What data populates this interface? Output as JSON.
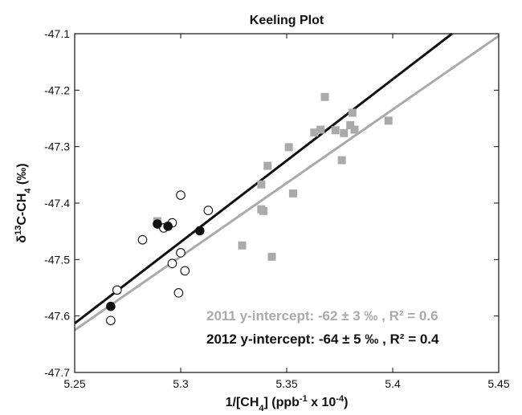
{
  "chart_data": {
    "type": "scatter",
    "title": "Keeling Plot",
    "xlabel": "1/[CH4] (ppb-1 x 10-4)",
    "ylabel": "δ13C-CH4 (‰)",
    "xlim": [
      5.25,
      5.45
    ],
    "ylim": [
      -47.7,
      -47.1
    ],
    "x_ticks": [
      "5.25",
      "5.3",
      "5.35",
      "5.4",
      "5.45"
    ],
    "y_ticks": [
      "-47.7",
      "-47.6",
      "-47.5",
      "-47.4",
      "-47.3",
      "-47.2",
      "-47.1"
    ],
    "grid": false,
    "colors": {
      "series_2011": "#aaaaaa",
      "series_2012": "#111111"
    },
    "series": [
      {
        "marker": "filled-square",
        "color": "#aaaaaa",
        "points": [
          [
            5.289,
            -47.432
          ],
          [
            5.329,
            -47.475
          ],
          [
            5.338,
            -47.367
          ],
          [
            5.338,
            -47.411
          ],
          [
            5.339,
            -47.414
          ],
          [
            5.341,
            -47.334
          ],
          [
            5.343,
            -47.495
          ],
          [
            5.351,
            -47.301
          ],
          [
            5.353,
            -47.383
          ],
          [
            5.363,
            -47.275
          ],
          [
            5.366,
            -47.27
          ],
          [
            5.368,
            -47.212
          ],
          [
            5.373,
            -47.271
          ],
          [
            5.376,
            -47.324
          ],
          [
            5.377,
            -47.276
          ],
          [
            5.38,
            -47.262
          ],
          [
            5.381,
            -47.24
          ],
          [
            5.382,
            -47.27
          ],
          [
            5.398,
            -47.254
          ]
        ]
      },
      {
        "marker": "open-circle",
        "color": "#111111",
        "points": [
          [
            5.267,
            -47.608
          ],
          [
            5.27,
            -47.554
          ],
          [
            5.282,
            -47.465
          ],
          [
            5.292,
            -47.444
          ],
          [
            5.296,
            -47.435
          ],
          [
            5.296,
            -47.507
          ],
          [
            5.299,
            -47.559
          ],
          [
            5.3,
            -47.488
          ],
          [
            5.3,
            -47.386
          ],
          [
            5.302,
            -47.52
          ],
          [
            5.313,
            -47.413
          ]
        ]
      },
      {
        "marker": "filled-circle",
        "color": "#111111",
        "points": [
          [
            5.267,
            -47.583
          ],
          [
            5.289,
            -47.437
          ],
          [
            5.294,
            -47.441
          ],
          [
            5.309,
            -47.449
          ]
        ]
      }
    ],
    "fit_lines": [
      {
        "color": "#aaaaaa",
        "x": [
          5.25,
          5.45
        ],
        "y": [
          -47.625,
          -47.104
        ]
      },
      {
        "color": "#111111",
        "x": [
          5.25,
          5.428
        ],
        "y": [
          -47.613,
          -47.1
        ]
      }
    ],
    "annotations": [
      {
        "text": "2011 y-intercept: -62 ± 3 ‰ , R² = 0.6",
        "color": "#aaaaaa",
        "x": 5.303,
        "y": -47.577
      },
      {
        "text": "2012 y-intercept: -64 ± 5 ‰ , R² = 0.4",
        "color": "#111111",
        "x": 5.303,
        "y": -47.619
      }
    ]
  }
}
